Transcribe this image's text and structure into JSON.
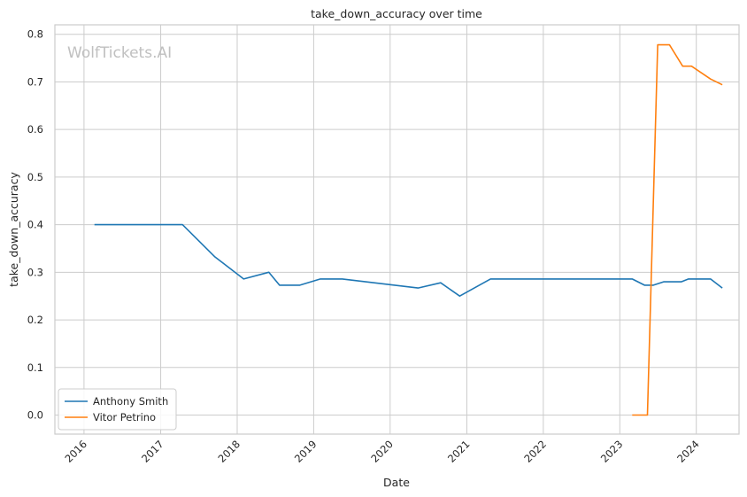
{
  "chart_data": {
    "type": "line",
    "title": "take_down_accuracy over time",
    "xlabel": "Date",
    "ylabel": "take_down_accuracy",
    "watermark": "WolfTickets.AI",
    "x_ticks": [
      "2016",
      "2017",
      "2018",
      "2019",
      "2020",
      "2021",
      "2022",
      "2023",
      "2024"
    ],
    "y_ticks": [
      "0.0",
      "0.1",
      "0.2",
      "0.3",
      "0.4",
      "0.5",
      "0.6",
      "0.7",
      "0.8"
    ],
    "xlim": [
      "2015-08-15",
      "2024-07-23"
    ],
    "ylim": [
      -0.04,
      0.82
    ],
    "grid": true,
    "legend_position": "lower-left",
    "series": [
      {
        "name": "Anthony Smith",
        "color": "#1f77b4",
        "points": [
          [
            "2016-02-20",
            0.4
          ],
          [
            "2017-04-15",
            0.4
          ],
          [
            "2017-09-15",
            0.333
          ],
          [
            "2018-02-01",
            0.286
          ],
          [
            "2018-06-01",
            0.3
          ],
          [
            "2018-07-22",
            0.273
          ],
          [
            "2018-10-27",
            0.273
          ],
          [
            "2019-02-02",
            0.286
          ],
          [
            "2019-05-18",
            0.286
          ],
          [
            "2020-05-13",
            0.267
          ],
          [
            "2020-08-29",
            0.278
          ],
          [
            "2020-11-28",
            0.25
          ],
          [
            "2021-04-24",
            0.286
          ],
          [
            "2023-03-01",
            0.286
          ],
          [
            "2023-04-29",
            0.273
          ],
          [
            "2023-06-10",
            0.273
          ],
          [
            "2023-07-29",
            0.28
          ],
          [
            "2023-10-21",
            0.28
          ],
          [
            "2023-11-25",
            0.286
          ],
          [
            "2024-03-09",
            0.286
          ],
          [
            "2024-05-04",
            0.267
          ]
        ]
      },
      {
        "name": "Vitor Petrino",
        "color": "#ff7f0e",
        "points": [
          [
            "2023-03-01",
            0.0
          ],
          [
            "2023-05-13",
            0.0
          ],
          [
            "2023-07-01",
            0.778
          ],
          [
            "2023-08-26",
            0.778
          ],
          [
            "2023-10-28",
            0.733
          ],
          [
            "2023-12-09",
            0.733
          ],
          [
            "2024-03-09",
            0.706
          ],
          [
            "2024-05-04",
            0.694
          ]
        ]
      }
    ]
  }
}
